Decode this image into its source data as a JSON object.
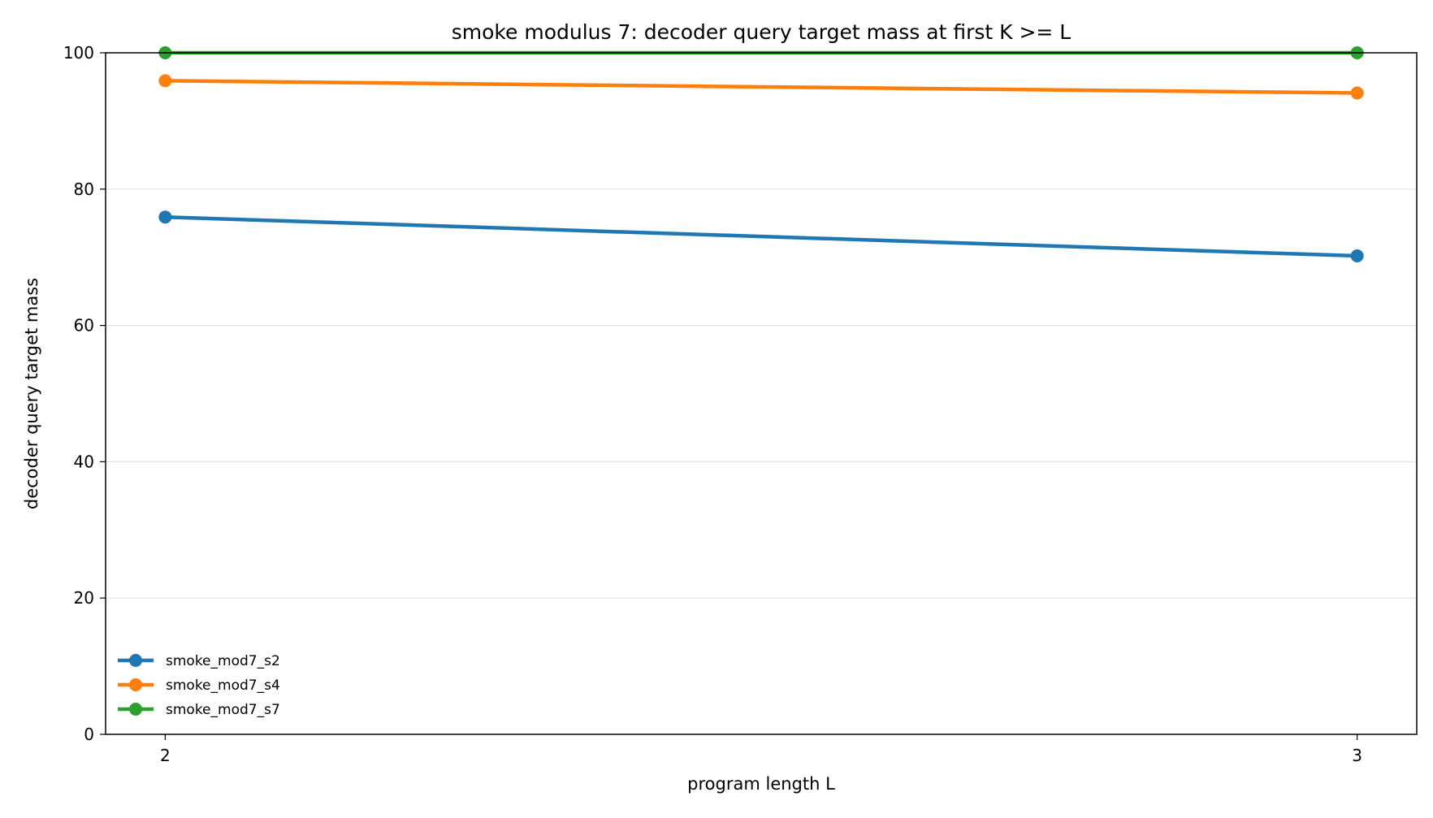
{
  "chart_data": {
    "type": "line",
    "title": "smoke modulus 7: decoder query target mass at first K >= L",
    "xlabel": "program length L",
    "ylabel": "decoder query target mass",
    "x": [
      2,
      3
    ],
    "xticks": [
      "2",
      "3"
    ],
    "xlim": [
      1.95,
      3.05
    ],
    "ylim": [
      0,
      100
    ],
    "yticks": [
      "0",
      "20",
      "40",
      "60",
      "80",
      "100"
    ],
    "grid": "horizontal",
    "legend_position": "lower-left",
    "series": [
      {
        "name": "smoke_mod7_s2",
        "values": [
          75.9,
          70.2
        ],
        "color": "#1f77b4"
      },
      {
        "name": "smoke_mod7_s4",
        "values": [
          95.9,
          94.1
        ],
        "color": "#ff7f0e"
      },
      {
        "name": "smoke_mod7_s7",
        "values": [
          100.0,
          100.0
        ],
        "color": "#2ca02c"
      }
    ]
  }
}
